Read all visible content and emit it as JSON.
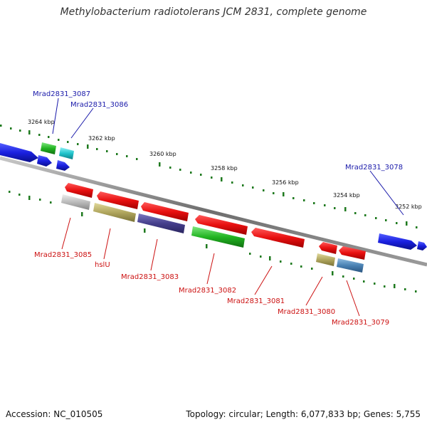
{
  "title": "Methylobacterium radiotolerans JCM 2831, complete genome",
  "footer": {
    "accession": "Accession: NC_010505",
    "topology": "Topology: circular; Length: 6,077,833 bp; Genes: 5,755"
  },
  "scale_labels": [
    {
      "text": "3264 kbp"
    },
    {
      "text": "3262 kbp"
    },
    {
      "text": "3260 kbp"
    },
    {
      "text": "3258 kbp"
    },
    {
      "text": "3256 kbp"
    },
    {
      "text": "3254 kbp"
    },
    {
      "text": "3252 kbp"
    }
  ],
  "forward_genes": [
    {
      "name": "Mrad2831_3087",
      "color": "#2fbf2f"
    },
    {
      "name": "Mrad2831_3086",
      "color": "#28c8d0"
    },
    {
      "name": "Mrad2831_3078",
      "color": "#1e2ee0"
    }
  ],
  "reverse_genes": [
    {
      "name": "Mrad2831_3085",
      "color": "#bdbdbd"
    },
    {
      "name": "hslU",
      "color": "#b8ae6a"
    },
    {
      "name": "Mrad2831_3083",
      "color": "#4a4590"
    },
    {
      "name": "Mrad2831_3082",
      "color": "#36c040"
    },
    {
      "name": "Mrad2831_3081",
      "color": "#e81818"
    },
    {
      "name": "Mrad2831_3080",
      "color": "#b8ae6a"
    },
    {
      "name": "Mrad2831_3079",
      "color": "#4f86b8"
    }
  ],
  "colors": {
    "forward_label": "#1a1aaa",
    "reverse_label": "#cc1111",
    "backbone": "#7a7a7a",
    "ticks": "#1f7a1f"
  }
}
